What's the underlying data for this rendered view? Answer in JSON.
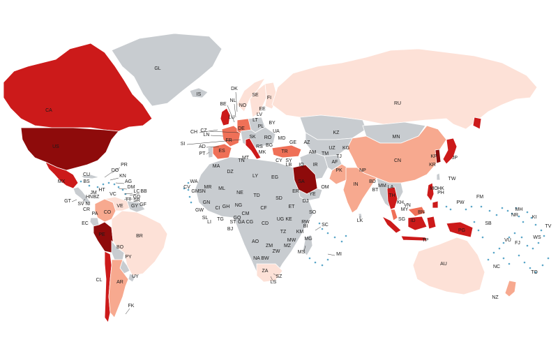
{
  "palette": {
    "no_data": "#c8ccd0",
    "very_low": "#fde1d7",
    "low": "#f7a98f",
    "medium": "#ef7057",
    "high": "#e3242b",
    "very_high": "#cc1a1a",
    "highest": "#8e0b0b",
    "ocean": "#ffffff",
    "islands": "#5aa6c8"
  },
  "countries": [
    {
      "code": "GL",
      "level": "no_data"
    },
    {
      "code": "CA",
      "level": "very_high"
    },
    {
      "code": "US",
      "level": "highest"
    },
    {
      "code": "MX",
      "level": "very_high"
    },
    {
      "code": "CU",
      "level": "no_data"
    },
    {
      "code": "CO",
      "level": "low"
    },
    {
      "code": "VE",
      "level": "very_low"
    },
    {
      "code": "BR",
      "level": "very_low"
    },
    {
      "code": "PE",
      "level": "highest"
    },
    {
      "code": "BO",
      "level": "no_data"
    },
    {
      "code": "PY",
      "level": "no_data"
    },
    {
      "code": "CL",
      "level": "very_high"
    },
    {
      "code": "AR",
      "level": "low"
    },
    {
      "code": "UY",
      "level": "no_data"
    },
    {
      "code": "EC",
      "level": "no_data"
    },
    {
      "code": "IS",
      "level": "no_data"
    },
    {
      "code": "NO",
      "level": "very_low"
    },
    {
      "code": "SE",
      "level": "very_low"
    },
    {
      "code": "FI",
      "level": "very_low"
    },
    {
      "code": "GB",
      "level": "very_high"
    },
    {
      "code": "FR",
      "level": "medium"
    },
    {
      "code": "ES",
      "level": "medium"
    },
    {
      "code": "PT",
      "level": "no_data"
    },
    {
      "code": "DE",
      "level": "medium"
    },
    {
      "code": "IT",
      "level": "very_high"
    },
    {
      "code": "PL",
      "level": "no_data"
    },
    {
      "code": "TR",
      "level": "medium"
    },
    {
      "code": "RU",
      "level": "very_low"
    },
    {
      "code": "KZ",
      "level": "no_data"
    },
    {
      "code": "MN",
      "level": "no_data"
    },
    {
      "code": "CN",
      "level": "low"
    },
    {
      "code": "IN",
      "level": "low"
    },
    {
      "code": "PK",
      "level": "low"
    },
    {
      "code": "IR",
      "level": "no_data"
    },
    {
      "code": "SA",
      "level": "highest"
    },
    {
      "code": "JP",
      "level": "very_high"
    },
    {
      "code": "KR",
      "level": "highest"
    },
    {
      "code": "TH",
      "level": "very_high"
    },
    {
      "code": "MY",
      "level": "medium"
    },
    {
      "code": "ID",
      "level": "very_high"
    },
    {
      "code": "PH",
      "level": "very_high"
    },
    {
      "code": "PG",
      "level": "very_high"
    },
    {
      "code": "AU",
      "level": "very_low"
    },
    {
      "code": "NZ",
      "level": "low"
    },
    {
      "code": "ZA",
      "level": "very_low"
    },
    {
      "code": "AF_CONT",
      "level": "no_data"
    }
  ],
  "labels": [
    {
      "code": "GL"
    },
    {
      "code": "IS"
    },
    {
      "code": "CA"
    },
    {
      "code": "US"
    },
    {
      "code": "MX"
    },
    {
      "code": "PR"
    },
    {
      "code": "DO"
    },
    {
      "code": "KN"
    },
    {
      "code": "AG"
    },
    {
      "code": "DM"
    },
    {
      "code": "LC"
    },
    {
      "code": "BB"
    },
    {
      "code": "GD"
    },
    {
      "code": "TT"
    },
    {
      "code": "SR"
    },
    {
      "code": "GY"
    },
    {
      "code": "GF"
    },
    {
      "code": "CU"
    },
    {
      "code": "BS"
    },
    {
      "code": "HT"
    },
    {
      "code": "JM"
    },
    {
      "code": "VC"
    },
    {
      "code": "HN"
    },
    {
      "code": "BZ"
    },
    {
      "code": "GT"
    },
    {
      "code": "SV"
    },
    {
      "code": "NI"
    },
    {
      "code": "CR"
    },
    {
      "code": "PA"
    },
    {
      "code": "CO"
    },
    {
      "code": "VE"
    },
    {
      "code": "EC"
    },
    {
      "code": "PE"
    },
    {
      "code": "BR"
    },
    {
      "code": "BO"
    },
    {
      "code": "PY"
    },
    {
      "code": "UY"
    },
    {
      "code": "CL"
    },
    {
      "code": "AR"
    },
    {
      "code": "FK"
    },
    {
      "code": "DK"
    },
    {
      "code": "NL"
    },
    {
      "code": "BE"
    },
    {
      "code": "LU"
    },
    {
      "code": "NO"
    },
    {
      "code": "SE"
    },
    {
      "code": "FI"
    },
    {
      "code": "EE"
    },
    {
      "code": "LV"
    },
    {
      "code": "LT"
    },
    {
      "code": "BY"
    },
    {
      "code": "UA"
    },
    {
      "code": "PL"
    },
    {
      "code": "CZ"
    },
    {
      "code": "SK"
    },
    {
      "code": "CH"
    },
    {
      "code": "LN"
    },
    {
      "code": "DE"
    },
    {
      "code": "FR"
    },
    {
      "code": "SI"
    },
    {
      "code": "AD"
    },
    {
      "code": "PT"
    },
    {
      "code": "ES"
    },
    {
      "code": "RO"
    },
    {
      "code": "MD"
    },
    {
      "code": "BG"
    },
    {
      "code": "RS"
    },
    {
      "code": "MK"
    },
    {
      "code": "GE"
    },
    {
      "code": "AZ"
    },
    {
      "code": "AM"
    },
    {
      "code": "TR"
    },
    {
      "code": "TN"
    },
    {
      "code": "MT"
    },
    {
      "code": "CY"
    },
    {
      "code": "LB"
    },
    {
      "code": "SY"
    },
    {
      "code": "IQ"
    },
    {
      "code": "IR"
    },
    {
      "code": "KZ"
    },
    {
      "code": "UZ"
    },
    {
      "code": "KG"
    },
    {
      "code": "TM"
    },
    {
      "code": "TJ"
    },
    {
      "code": "AF"
    },
    {
      "code": "PK"
    },
    {
      "code": "NP"
    },
    {
      "code": "BD"
    },
    {
      "code": "BT"
    },
    {
      "code": "IN"
    },
    {
      "code": "LK"
    },
    {
      "code": "MN"
    },
    {
      "code": "CN"
    },
    {
      "code": "KP"
    },
    {
      "code": "KR"
    },
    {
      "code": "JP"
    },
    {
      "code": "RU"
    },
    {
      "code": "TW"
    },
    {
      "code": "HK"
    },
    {
      "code": "MO"
    },
    {
      "code": "PH"
    },
    {
      "code": "MM"
    },
    {
      "code": "LA"
    },
    {
      "code": "TH"
    },
    {
      "code": "KH"
    },
    {
      "code": "VN"
    },
    {
      "code": "MY"
    },
    {
      "code": "SG"
    },
    {
      "code": "BN"
    },
    {
      "code": "ID"
    },
    {
      "code": "TP"
    },
    {
      "code": "PG"
    },
    {
      "code": "PW"
    },
    {
      "code": "FM"
    },
    {
      "code": "MH"
    },
    {
      "code": "NR"
    },
    {
      "code": "KI"
    },
    {
      "code": "TV"
    },
    {
      "code": "SB"
    },
    {
      "code": "VU"
    },
    {
      "code": "FJ"
    },
    {
      "code": "WS"
    },
    {
      "code": "NC"
    },
    {
      "code": "TO"
    },
    {
      "code": "AU"
    },
    {
      "code": "NZ"
    },
    {
      "code": "MA"
    },
    {
      "code": "DZ"
    },
    {
      "code": "LY"
    },
    {
      "code": "EG"
    },
    {
      "code": "WA"
    },
    {
      "code": "CV"
    },
    {
      "code": "GM"
    },
    {
      "code": "SN"
    },
    {
      "code": "MR"
    },
    {
      "code": "ML"
    },
    {
      "code": "NE"
    },
    {
      "code": "TD"
    },
    {
      "code": "SD"
    },
    {
      "code": "ER"
    },
    {
      "code": "DJ"
    },
    {
      "code": "ET"
    },
    {
      "code": "SO"
    },
    {
      "code": "YE"
    },
    {
      "code": "OM"
    },
    {
      "code": "SA"
    },
    {
      "code": "GW"
    },
    {
      "code": "GN"
    },
    {
      "code": "SL"
    },
    {
      "code": "LI"
    },
    {
      "code": "CI"
    },
    {
      "code": "GH"
    },
    {
      "code": "TG"
    },
    {
      "code": "BJ"
    },
    {
      "code": "NG"
    },
    {
      "code": "ST"
    },
    {
      "code": "CM"
    },
    {
      "code": "GQ"
    },
    {
      "code": "GA"
    },
    {
      "code": "CG"
    },
    {
      "code": "CF"
    },
    {
      "code": "CD"
    },
    {
      "code": "UG"
    },
    {
      "code": "KE"
    },
    {
      "code": "RW"
    },
    {
      "code": "BI"
    },
    {
      "code": "TZ"
    },
    {
      "code": "KM"
    },
    {
      "code": "SC"
    },
    {
      "code": "MW"
    },
    {
      "code": "AO"
    },
    {
      "code": "ZM"
    },
    {
      "code": "MZ"
    },
    {
      "code": "ZW"
    },
    {
      "code": "NA"
    },
    {
      "code": "BW"
    },
    {
      "code": "MG"
    },
    {
      "code": "MS"
    },
    {
      "code": "MI"
    },
    {
      "code": "ZA"
    },
    {
      "code": "SZ"
    },
    {
      "code": "LS"
    }
  ]
}
